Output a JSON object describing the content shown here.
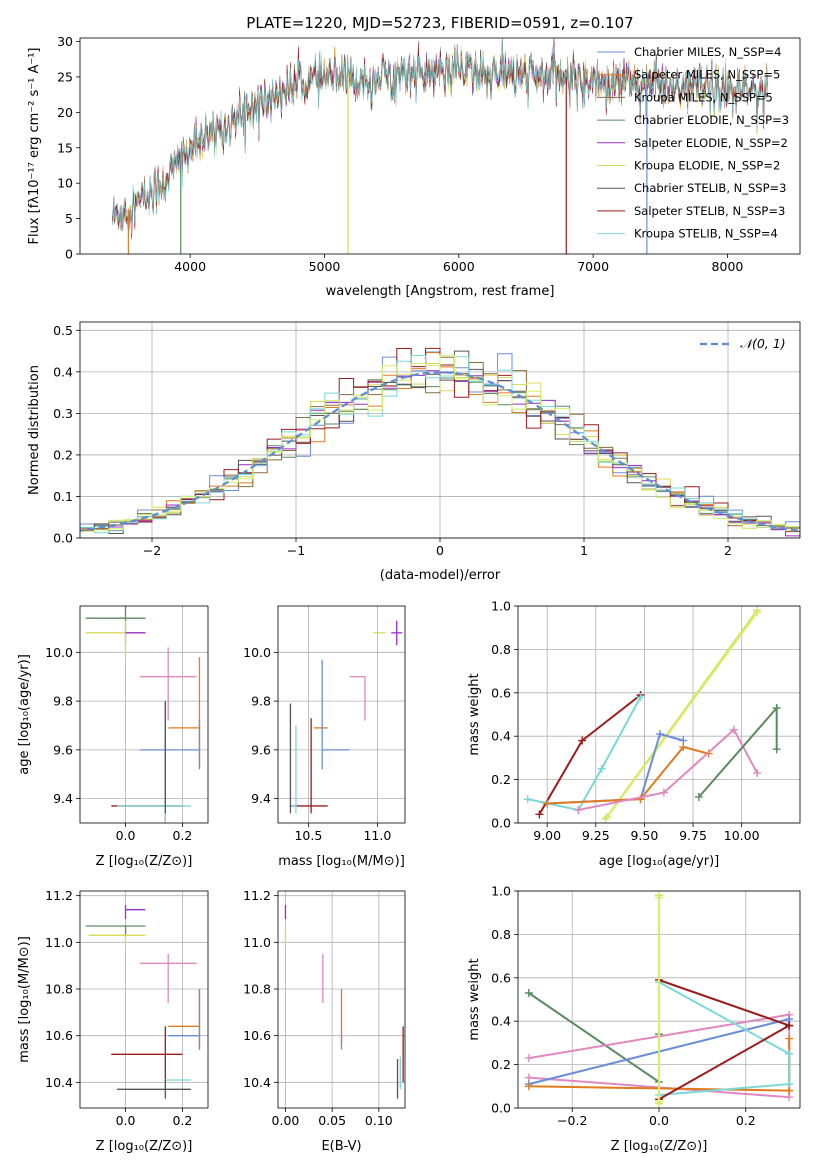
{
  "title": "PLATE=1220, MJD=52723, FIBERID=0591, z=0.107",
  "colors": {
    "blue": "#6a8ed8",
    "orange": "#e07b20",
    "green": "#5a8a60",
    "pink": "#e088c0",
    "olive": "#dada5a",
    "purple": "#9a2fc8",
    "gray": "#555555",
    "red": "#9b1c1c",
    "cyan": "#7ad8d8",
    "lime": "#d2f06a",
    "brown": "#8a6a40",
    "gauss": "#5b8fd4"
  },
  "chart_data": [
    {
      "id": "spectrum",
      "type": "line",
      "title": "PLATE=1220, MJD=52723, FIBERID=0591, z=0.107",
      "xlabel": "wavelength [Angstrom, rest frame]",
      "ylabel": "Flux [fλ10⁻¹⁷ erg cm⁻² s⁻¹ A⁻¹]",
      "xlim": [
        3180,
        8540
      ],
      "ylim": [
        0,
        30.5
      ],
      "xticks": [
        4000,
        5000,
        6000,
        7000,
        8000
      ],
      "yticks": [
        0,
        5,
        10,
        15,
        20,
        25,
        30
      ],
      "legend_position": "top-right",
      "legend": [
        {
          "text": "Chabrier MILES, N_SSP=4",
          "color": "#6a8ed8"
        },
        {
          "text": "Salpeter MILES, N_SSP=5",
          "color": "#e07b20"
        },
        {
          "text": "Kroupa MILES, N_SSP=5",
          "color": "#8a6a40"
        },
        {
          "text": "Chabrier ELODIE, N_SSP=3",
          "color": "#5a8a60"
        },
        {
          "text": "Salpeter ELODIE, N_SSP=2",
          "color": "#9a2fc8"
        },
        {
          "text": "Kroupa ELODIE, N_SSP=2",
          "color": "#dada5a"
        },
        {
          "text": "Chabrier STELIB, N_SSP=3",
          "color": "#555555"
        },
        {
          "text": "Salpeter STELIB, N_SSP=3",
          "color": "#9b1c1c"
        },
        {
          "text": "Kroupa STELIB, N_SSP=4",
          "color": "#7ad8d8"
        }
      ],
      "continuum_x": [
        3400,
        3600,
        3800,
        4000,
        4200,
        4400,
        4600,
        4800,
        5000,
        5200,
        5400,
        5600,
        5800,
        6000,
        6200,
        6400,
        6600,
        6800,
        7000,
        7200,
        7400,
        7600,
        7800,
        8000,
        8300
      ],
      "continuum_y": [
        5,
        7,
        10,
        15,
        17,
        20,
        22,
        24,
        25,
        24.5,
        25,
        25.5,
        25.5,
        26,
        25.5,
        25.5,
        25,
        25,
        24.5,
        24.5,
        24,
        23.5,
        23.5,
        23,
        23
      ],
      "spike_dips": [
        3540,
        3930,
        5175,
        6800,
        7400
      ],
      "series_note": "noisy model spectra"
    },
    {
      "id": "residuals",
      "type": "histogram",
      "xlabel": "(data-model)/error",
      "ylabel": "Normed distribution",
      "xlim": [
        -2.5,
        2.5
      ],
      "ylim": [
        0,
        0.52
      ],
      "xticks": [
        -2,
        -1,
        0,
        1,
        2
      ],
      "yticks": [
        0.0,
        0.1,
        0.2,
        0.3,
        0.4,
        0.5
      ],
      "legend_position": "top-right",
      "legend": [
        {
          "text": "𝒩(0, 1)",
          "color": "#5b8fd4"
        }
      ],
      "bin_width": 0.1,
      "curve": "gaussian N(0,1)"
    },
    {
      "id": "age_vs_Z",
      "type": "scatter",
      "xlabel": "Z [log₁₀(Z/Z⊙)]",
      "ylabel": "age  [log₁₀(age/yr)]",
      "xlim": [
        -0.16,
        0.29
      ],
      "ylim": [
        9.3,
        10.19
      ],
      "xticks": [
        0.0,
        0.2
      ],
      "yticks": [
        9.4,
        9.6,
        9.8,
        10.0
      ],
      "points": [
        {
          "x": 0.0,
          "y": 10.14,
          "xerr": [
            0.14,
            0.07
          ],
          "yerr": [
            0.1,
            0.05
          ],
          "color": "#5a8a60"
        },
        {
          "x": 0.0,
          "y": 10.08,
          "xerr": [
            0.14,
            0.07
          ],
          "yerr": [
            0.1,
            0.05
          ],
          "color": "#dada5a"
        },
        {
          "x": 0.0,
          "y": 10.08,
          "xerr": [
            0.0,
            0.07
          ],
          "yerr": [
            0.0,
            0.0
          ],
          "color": "#9a2fc8"
        },
        {
          "x": 0.15,
          "y": 9.9,
          "xerr": [
            0.1,
            0.1
          ],
          "yerr": [
            0.18,
            0.12
          ],
          "color": "#e088c0"
        },
        {
          "x": 0.26,
          "y": 9.69,
          "xerr": [
            0.11,
            0.0
          ],
          "yerr": [
            0.16,
            0.29
          ],
          "color": "#e07b20"
        },
        {
          "x": 0.26,
          "y": 9.6,
          "xerr": [
            0.21,
            0.0
          ],
          "yerr": [
            0.08,
            0.12
          ],
          "color": "#6a8ed8"
        },
        {
          "x": 0.14,
          "y": 9.37,
          "xerr": [
            0.19,
            0.06
          ],
          "yerr": [
            0.08,
            0.43
          ],
          "color": "#9b1c1c"
        },
        {
          "x": 0.14,
          "y": 9.37,
          "xerr": [
            0.17,
            0.09
          ],
          "yerr": [
            0.07,
            0.43
          ],
          "color": "#7ad8d8"
        },
        {
          "x": 0.14,
          "y": 9.37,
          "xerr": [
            0.0,
            0.0
          ],
          "yerr": [
            0.03,
            0.43
          ],
          "color": "#555555"
        }
      ]
    },
    {
      "id": "age_vs_mass",
      "type": "scatter",
      "xlabel": "mass [log₁₀(M/M⊙)]",
      "ylabel": "",
      "xlim": [
        10.28,
        11.2
      ],
      "ylim": [
        9.3,
        10.19
      ],
      "xticks": [
        10.5,
        11.0
      ],
      "yticks": [
        9.4,
        9.6,
        9.8,
        10.0
      ],
      "points": [
        {
          "x": 11.07,
          "y": 10.14,
          "xerr": [
            0.0,
            0.0
          ],
          "yerr": [
            0.0,
            0.0
          ],
          "color": "#5a8a60"
        },
        {
          "x": 11.03,
          "y": 10.08,
          "xerr": [
            0.06,
            0.03
          ],
          "yerr": [
            0.0,
            0.0
          ],
          "color": "#dada5a"
        },
        {
          "x": 11.14,
          "y": 10.08,
          "xerr": [
            0.04,
            0.04
          ],
          "yerr": [
            0.05,
            0.05
          ],
          "color": "#9a2fc8"
        },
        {
          "x": 10.91,
          "y": 9.9,
          "xerr": [
            0.11,
            0.0
          ],
          "yerr": [
            0.18,
            0.0
          ],
          "color": "#e088c0"
        },
        {
          "x": 10.64,
          "y": 9.69,
          "xerr": [
            0.1,
            0.0
          ],
          "yerr": [
            0.0,
            0.0
          ],
          "color": "#e07b20"
        },
        {
          "x": 10.6,
          "y": 9.6,
          "xerr": [
            0.0,
            0.2
          ],
          "yerr": [
            0.08,
            0.37
          ],
          "color": "#6a8ed8"
        },
        {
          "x": 10.52,
          "y": 9.37,
          "xerr": [
            0.15,
            0.12
          ],
          "yerr": [
            0.03,
            0.36
          ],
          "color": "#9b1c1c"
        },
        {
          "x": 10.41,
          "y": 9.37,
          "xerr": [
            0.05,
            0.0
          ],
          "yerr": [
            0.03,
            0.33
          ],
          "color": "#7ad8d8"
        },
        {
          "x": 10.37,
          "y": 9.37,
          "xerr": [
            0.0,
            0.0
          ],
          "yerr": [
            0.03,
            0.42
          ],
          "color": "#555555"
        }
      ]
    },
    {
      "id": "weight_vs_age",
      "type": "line",
      "xlabel": "age  [log₁₀(age/yr)]",
      "ylabel": "mass weight",
      "xlim": [
        8.85,
        10.3
      ],
      "ylim": [
        0,
        1.0
      ],
      "xticks": [
        9.0,
        9.25,
        9.5,
        9.75,
        10.0
      ],
      "yticks": [
        0.0,
        0.2,
        0.4,
        0.6,
        0.8,
        1.0
      ],
      "series": [
        {
          "color": "#dada5a",
          "x": [
            9.3,
            10.08
          ],
          "y": [
            0.02,
            0.98
          ]
        },
        {
          "color": "#d2f06a",
          "x": [
            9.31,
            10.08
          ],
          "y": [
            0.03,
            0.97
          ]
        },
        {
          "color": "#9b1c1c",
          "x": [
            8.96,
            9.18,
            9.48
          ],
          "y": [
            0.04,
            0.38,
            0.59
          ]
        },
        {
          "color": "#7ad8d8",
          "x": [
            8.9,
            9.16,
            9.28,
            9.48
          ],
          "y": [
            0.11,
            0.06,
            0.25,
            0.58
          ]
        },
        {
          "color": "#6a8ed8",
          "x": [
            9.0,
            9.48,
            9.58,
            9.7
          ],
          "y": [
            0.09,
            0.11,
            0.41,
            0.38
          ]
        },
        {
          "color": "#e07b20",
          "x": [
            9.0,
            9.48,
            9.7,
            9.83
          ],
          "y": [
            0.09,
            0.11,
            0.35,
            0.32
          ]
        },
        {
          "color": "#e088c0",
          "x": [
            9.16,
            9.6,
            9.96,
            10.08
          ],
          "y": [
            0.06,
            0.14,
            0.43,
            0.23
          ]
        },
        {
          "color": "#5a8a60",
          "x": [
            9.78,
            10.18,
            10.18
          ],
          "y": [
            0.12,
            0.53,
            0.34
          ]
        }
      ]
    },
    {
      "id": "mass_vs_Z",
      "type": "scatter",
      "xlabel": "Z [log₁₀(Z/Z⊙)]",
      "ylabel": "mass [log₁₀(M/M⊙)]",
      "xlim": [
        -0.16,
        0.29
      ],
      "ylim": [
        10.29,
        11.22
      ],
      "xticks": [
        0.0,
        0.2
      ],
      "yticks": [
        10.4,
        10.6,
        10.8,
        11.0,
        11.2
      ],
      "points": [
        {
          "x": 0.0,
          "y": 11.14,
          "xerr": [
            0.0,
            0.07
          ],
          "yerr": [
            0.04,
            0.02
          ],
          "color": "#9a2fc8"
        },
        {
          "x": 0.0,
          "y": 11.07,
          "xerr": [
            0.14,
            0.07
          ],
          "yerr": [
            0.04,
            0.0
          ],
          "color": "#5a8a60"
        },
        {
          "x": 0.0,
          "y": 11.03,
          "xerr": [
            0.13,
            0.07
          ],
          "yerr": [
            0.04,
            0.0
          ],
          "color": "#dada5a"
        },
        {
          "x": 0.15,
          "y": 10.91,
          "xerr": [
            0.1,
            0.1
          ],
          "yerr": [
            0.17,
            0.04
          ],
          "color": "#e088c0"
        },
        {
          "x": 0.26,
          "y": 10.64,
          "xerr": [
            0.11,
            0.0
          ],
          "yerr": [
            0.1,
            0.16
          ],
          "color": "#e07b20"
        },
        {
          "x": 0.26,
          "y": 10.6,
          "xerr": [
            0.11,
            0.0
          ],
          "yerr": [
            0.06,
            0.2
          ],
          "color": "#6a8ed8"
        },
        {
          "x": 0.14,
          "y": 10.52,
          "xerr": [
            0.19,
            0.06
          ],
          "yerr": [
            0.12,
            0.12
          ],
          "color": "#9b1c1c"
        },
        {
          "x": 0.14,
          "y": 10.41,
          "xerr": [
            0.0,
            0.09
          ],
          "yerr": [
            0.04,
            0.0
          ],
          "color": "#7ad8d8"
        },
        {
          "x": 0.14,
          "y": 10.37,
          "xerr": [
            0.17,
            0.09
          ],
          "yerr": [
            0.04,
            0.04
          ],
          "color": "#555555"
        }
      ]
    },
    {
      "id": "mass_vs_ebv",
      "type": "scatter",
      "xlabel": "E(B-V)",
      "ylabel": "",
      "xlim": [
        -0.008,
        0.128
      ],
      "ylim": [
        10.29,
        11.22
      ],
      "xticks": [
        0.0,
        0.05,
        0.1
      ],
      "yticks": [
        10.4,
        10.6,
        10.8,
        11.0,
        11.2
      ],
      "points": [
        {
          "x": 0.0,
          "y": 11.14,
          "xerr": [
            0,
            0
          ],
          "yerr": [
            0.04,
            0.02
          ],
          "color": "#9a2fc8"
        },
        {
          "x": 0.0,
          "y": 11.03,
          "xerr": [
            0,
            0
          ],
          "yerr": [
            0.04,
            0.04
          ],
          "color": "#dada5a"
        },
        {
          "x": 0.04,
          "y": 10.84,
          "xerr": [
            0,
            0
          ],
          "yerr": [
            0.1,
            0.11
          ],
          "color": "#e088c0"
        },
        {
          "x": 0.06,
          "y": 10.67,
          "xerr": [
            0,
            0
          ],
          "yerr": [
            0.1,
            0.13
          ],
          "color": "#e07b20"
        },
        {
          "x": 0.06,
          "y": 10.6,
          "xerr": [
            0,
            0
          ],
          "yerr": [
            0.06,
            0.0
          ],
          "color": "#6a8ed8"
        },
        {
          "x": 0.126,
          "y": 10.52,
          "xerr": [
            0,
            0
          ],
          "yerr": [
            0.12,
            0.12
          ],
          "color": "#9b1c1c"
        },
        {
          "x": 0.123,
          "y": 10.41,
          "xerr": [
            0,
            0
          ],
          "yerr": [
            0.04,
            0.1
          ],
          "color": "#7ad8d8"
        },
        {
          "x": 0.12,
          "y": 10.37,
          "xerr": [
            0,
            0
          ],
          "yerr": [
            0.04,
            0.13
          ],
          "color": "#555555"
        }
      ]
    },
    {
      "id": "weight_vs_Z",
      "type": "line",
      "xlabel": "Z [log₁₀(Z/Z⊙)]",
      "ylabel": "mass weight",
      "xlim": [
        -0.325,
        0.325
      ],
      "ylim": [
        0,
        1.0
      ],
      "xticks": [
        -0.2,
        0.0,
        0.2
      ],
      "yticks": [
        0.0,
        0.2,
        0.4,
        0.6,
        0.8,
        1.0
      ],
      "series": [
        {
          "color": "#5a8a60",
          "x": [
            -0.3,
            0.0,
            0.0
          ],
          "y": [
            0.53,
            0.12,
            0.34
          ]
        },
        {
          "color": "#e088c0",
          "x": [
            -0.3,
            0.3,
            0.3,
            -0.3
          ],
          "y": [
            0.23,
            0.43,
            0.05,
            0.14
          ]
        },
        {
          "color": "#6a8ed8",
          "x": [
            -0.3,
            0.3,
            0.3
          ],
          "y": [
            0.11,
            0.41,
            0.38
          ]
        },
        {
          "color": "#e07b20",
          "x": [
            -0.3,
            0.3,
            0.3
          ],
          "y": [
            0.1,
            0.08,
            0.32
          ]
        },
        {
          "color": "#7ad8d8",
          "x": [
            0.0,
            0.3,
            0.3,
            0.0
          ],
          "y": [
            0.06,
            0.11,
            0.25,
            0.58
          ]
        },
        {
          "color": "#9b1c1c",
          "x": [
            0.0,
            0.3,
            0.3,
            0.0
          ],
          "y": [
            0.04,
            0.38,
            0.38,
            0.59
          ]
        },
        {
          "color": "#dada5a",
          "x": [
            0.0,
            0.0
          ],
          "y": [
            0.02,
            0.98
          ]
        },
        {
          "color": "#d2f06a",
          "x": [
            0.0,
            0.0
          ],
          "y": [
            0.03,
            0.97
          ]
        }
      ]
    }
  ]
}
